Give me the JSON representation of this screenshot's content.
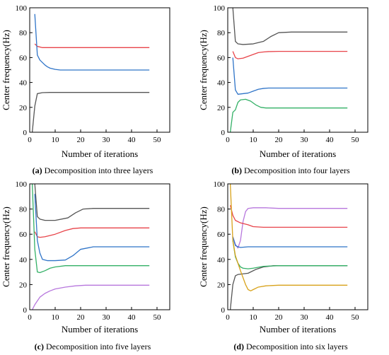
{
  "chart_data": [
    {
      "type": "line",
      "xlabel": "Number of iterations",
      "ylabel": "Center frequency(Hz)",
      "xlim": [
        0,
        55
      ],
      "ylim": [
        0,
        100
      ],
      "xticks": [
        0,
        10,
        20,
        30,
        40,
        50
      ],
      "yticks": [
        0,
        20,
        40,
        60,
        80,
        100
      ],
      "caption_label": "(a)",
      "caption_text": "Decomposition into three layers",
      "series": [
        {
          "color": "#e8444a",
          "x": [
            2,
            3,
            5,
            8,
            12,
            20,
            30,
            47
          ],
          "y": [
            71,
            69,
            68,
            68,
            68,
            68,
            68,
            68
          ]
        },
        {
          "color": "#2f74c8",
          "x": [
            2,
            3,
            4,
            5,
            6,
            7,
            8,
            10,
            12,
            15,
            20,
            30,
            47
          ],
          "y": [
            95,
            62,
            58,
            56,
            54,
            52.5,
            51.5,
            50.5,
            50,
            50,
            50,
            50,
            50
          ]
        },
        {
          "color": "#555555",
          "x": [
            1,
            2,
            3,
            5,
            8,
            12,
            20,
            30,
            47
          ],
          "y": [
            0,
            21,
            31,
            31.8,
            32,
            32,
            32,
            32,
            32
          ]
        }
      ]
    },
    {
      "type": "line",
      "xlabel": "Number of iterations",
      "ylabel": "Center frequency(Hz)",
      "xlim": [
        0,
        55
      ],
      "ylim": [
        0,
        100
      ],
      "xticks": [
        0,
        10,
        20,
        30,
        40,
        50
      ],
      "yticks": [
        0,
        20,
        40,
        60,
        80,
        100
      ],
      "caption_label": "(b)",
      "caption_text": "Decomposition into four layers",
      "series": [
        {
          "color": "#555555",
          "x": [
            2,
            3,
            4,
            6,
            10,
            14,
            17,
            20,
            25,
            30,
            47
          ],
          "y": [
            100,
            73,
            71,
            70.5,
            71,
            73,
            77,
            80,
            80.5,
            80.5,
            80.5
          ]
        },
        {
          "color": "#e8444a",
          "x": [
            2,
            3,
            4,
            6,
            8,
            10,
            12,
            14,
            16,
            20,
            30,
            47
          ],
          "y": [
            65,
            60,
            59,
            59.5,
            61,
            62.5,
            64,
            64.5,
            64.8,
            65,
            65,
            65
          ]
        },
        {
          "color": "#2f74c8",
          "x": [
            2,
            3,
            4,
            6,
            8,
            10,
            12,
            14,
            16,
            20,
            30,
            47
          ],
          "y": [
            60,
            34,
            30.5,
            31,
            31.5,
            33,
            34.5,
            35.2,
            35.5,
            35.5,
            35.5,
            35.5
          ]
        },
        {
          "color": "#33b066",
          "x": [
            1,
            2,
            3,
            4,
            5,
            7,
            9,
            11,
            13,
            15,
            20,
            30,
            47
          ],
          "y": [
            0,
            16,
            18,
            24,
            26,
            26.5,
            25,
            22,
            20,
            19.5,
            19.5,
            19.5,
            19.5
          ]
        }
      ]
    },
    {
      "type": "line",
      "xlabel": "Number of iterations",
      "ylabel": "Center frequency(Hz)",
      "xlim": [
        0,
        55
      ],
      "ylim": [
        0,
        100
      ],
      "xticks": [
        0,
        10,
        20,
        30,
        40,
        50
      ],
      "yticks": [
        0,
        20,
        40,
        60,
        80,
        100
      ],
      "caption_label": "(c)",
      "caption_text": "Decomposition into five layers",
      "series": [
        {
          "color": "#555555",
          "x": [
            2,
            3,
            4,
            6,
            10,
            15,
            18,
            21,
            25,
            30,
            47
          ],
          "y": [
            100,
            74,
            72,
            71,
            71,
            73,
            77,
            80,
            80.5,
            80.5,
            80.5
          ]
        },
        {
          "color": "#e8444a",
          "x": [
            2,
            3,
            4,
            6,
            10,
            14,
            17,
            20,
            30,
            47
          ],
          "y": [
            62,
            58,
            57.5,
            58,
            60,
            63,
            64.5,
            65,
            65,
            65
          ]
        },
        {
          "color": "#2f74c8",
          "x": [
            2,
            3,
            4,
            5,
            7,
            10,
            14,
            17,
            20,
            25,
            30,
            47
          ],
          "y": [
            92,
            55,
            45,
            40,
            39,
            39,
            39.5,
            43,
            48,
            50,
            50,
            50
          ]
        },
        {
          "color": "#33b066",
          "x": [
            1,
            2,
            3,
            4,
            6,
            8,
            10,
            14,
            20,
            30,
            47
          ],
          "y": [
            100,
            48,
            30,
            29.5,
            31,
            33,
            34,
            35,
            35,
            35,
            35
          ]
        },
        {
          "color": "#b777dd",
          "x": [
            1,
            2,
            3,
            4,
            6,
            8,
            10,
            14,
            18,
            22,
            30,
            47
          ],
          "y": [
            0,
            4,
            7,
            10,
            13,
            15,
            16.5,
            18,
            19,
            19.5,
            19.5,
            19.5
          ]
        }
      ]
    },
    {
      "type": "line",
      "xlabel": "Number of iterations",
      "ylabel": "Center frequency(Hz)",
      "xlim": [
        0,
        55
      ],
      "ylim": [
        0,
        100
      ],
      "xticks": [
        0,
        10,
        20,
        30,
        40,
        50
      ],
      "yticks": [
        0,
        20,
        40,
        60,
        80,
        100
      ],
      "caption_label": "(d)",
      "caption_text": "Decomposition into six layers",
      "series": [
        {
          "color": "#b777dd",
          "x": [
            2,
            3,
            4,
            5,
            6,
            7,
            8,
            10,
            15,
            20,
            30,
            47
          ],
          "y": [
            58,
            52,
            49,
            55,
            70,
            78,
            80.5,
            81,
            81,
            80.5,
            80.5,
            80.5
          ]
        },
        {
          "color": "#e8444a",
          "x": [
            1,
            2,
            3,
            5,
            8,
            10,
            14,
            20,
            30,
            47
          ],
          "y": [
            83,
            75,
            71,
            69,
            67.5,
            66,
            65.5,
            65.5,
            65.5,
            65.5
          ]
        },
        {
          "color": "#2f74c8",
          "x": [
            2,
            3,
            4,
            5,
            8,
            12,
            20,
            30,
            47
          ],
          "y": [
            58,
            51,
            50,
            49.5,
            50,
            50,
            50,
            50,
            50
          ]
        },
        {
          "color": "#555555",
          "x": [
            1,
            2,
            3,
            4,
            6,
            8,
            11,
            14,
            18,
            25,
            30,
            47
          ],
          "y": [
            0,
            20,
            27,
            28,
            28.5,
            29,
            32,
            34,
            35,
            35,
            35,
            35
          ]
        },
        {
          "color": "#33b066",
          "x": [
            2,
            3,
            4,
            5,
            6,
            8,
            10,
            14,
            20,
            30,
            47
          ],
          "y": [
            55,
            42,
            37,
            34,
            33,
            32.5,
            33,
            34.5,
            35,
            35,
            35
          ]
        },
        {
          "color": "#d8a21a",
          "x": [
            1,
            2,
            3,
            5,
            7,
            8,
            9,
            10,
            12,
            15,
            20,
            30,
            47
          ],
          "y": [
            100,
            55,
            43,
            31,
            20,
            16,
            15,
            16,
            18,
            19,
            19.5,
            19.5,
            19.5
          ]
        }
      ]
    }
  ]
}
